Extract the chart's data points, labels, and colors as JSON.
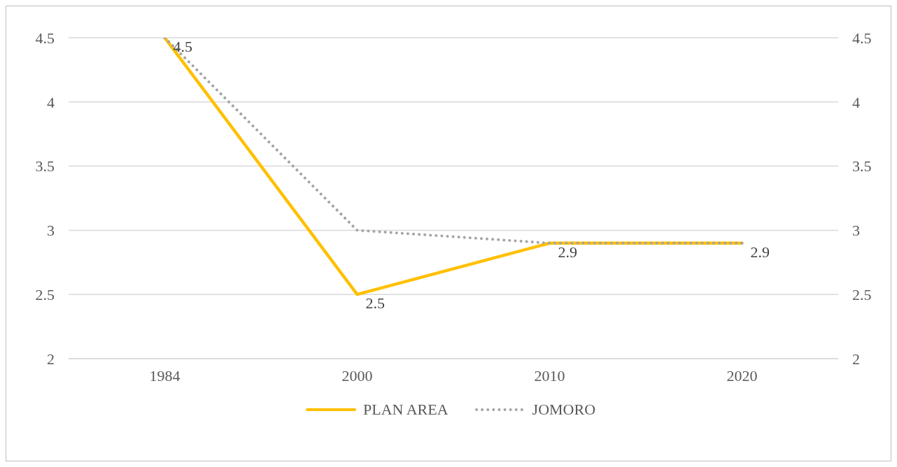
{
  "chart_data": {
    "type": "line",
    "categories": [
      "1984",
      "2000",
      "2010",
      "2020"
    ],
    "series": [
      {
        "name": "PLAN AREA",
        "color": "#ffc000",
        "values": [
          4.5,
          2.5,
          2.9,
          2.9
        ],
        "line_style": "solid",
        "value_labels": [
          "4.5",
          "2.5",
          "2.9",
          "2.9"
        ]
      },
      {
        "name": "JOMORO",
        "color": "#a5a5a5",
        "values": [
          4.5,
          3.0,
          2.9,
          2.9
        ],
        "line_style": "dotted"
      }
    ],
    "ylim": [
      2,
      4.5
    ],
    "yticks": [
      2,
      2.5,
      3,
      3.5,
      4,
      4.5
    ],
    "y2lim": [
      2,
      4.5
    ],
    "y2ticks": [
      2,
      2.5,
      3,
      3.5,
      4,
      4.5
    ],
    "grid": "y",
    "legend": "bottom",
    "marker": "none"
  }
}
